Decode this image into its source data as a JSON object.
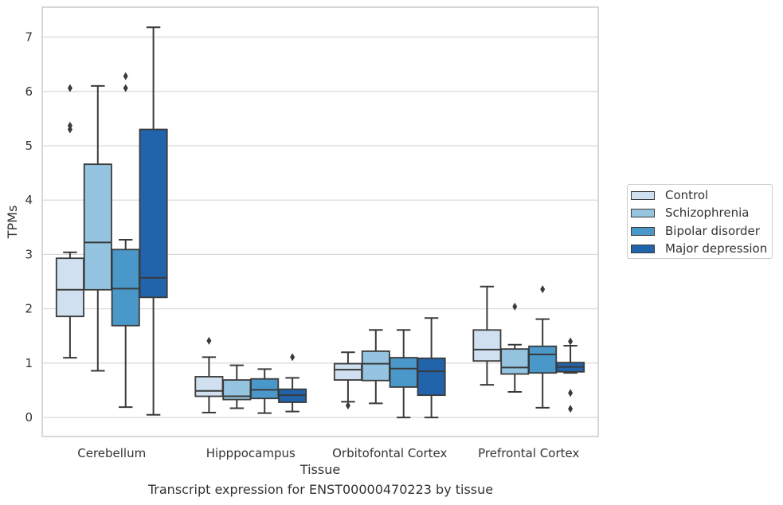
{
  "chart_data": {
    "type": "boxplot",
    "xlabel": "Tissue",
    "ylabel": "TPMs",
    "caption": "Transcript expression for ENST00000470223 by tissue",
    "ylim": [
      -0.35,
      7.55
    ],
    "yticks": [
      0,
      1,
      2,
      3,
      4,
      5,
      6,
      7
    ],
    "grid": "horizontal",
    "legend_position": "right",
    "categories": [
      "Cerebellum",
      "Hipppocampus",
      "Orbitofontal Cortex",
      "Prefrontal Cortex"
    ],
    "series": [
      {
        "name": "Control",
        "color": "#d0e0f0",
        "boxes": [
          {
            "whislo": 1.1,
            "q1": 1.86,
            "med": 2.35,
            "q3": 2.93,
            "whishi": 3.04,
            "fliers": [
              5.3,
              5.37,
              6.06
            ]
          },
          {
            "whislo": 0.09,
            "q1": 0.39,
            "med": 0.49,
            "q3": 0.75,
            "whishi": 1.11,
            "fliers": [
              1.41
            ]
          },
          {
            "whislo": 0.29,
            "q1": 0.69,
            "med": 0.88,
            "q3": 0.99,
            "whishi": 1.2,
            "fliers": [
              0.22
            ]
          },
          {
            "whislo": 0.6,
            "q1": 1.04,
            "med": 1.25,
            "q3": 1.61,
            "whishi": 2.41,
            "fliers": []
          }
        ]
      },
      {
        "name": "Schizophrenia",
        "color": "#94c4df",
        "boxes": [
          {
            "whislo": 0.86,
            "q1": 2.35,
            "med": 3.22,
            "q3": 4.66,
            "whishi": 6.1,
            "fliers": []
          },
          {
            "whislo": 0.17,
            "q1": 0.33,
            "med": 0.39,
            "q3": 0.69,
            "whishi": 0.96,
            "fliers": []
          },
          {
            "whislo": 0.26,
            "q1": 0.68,
            "med": 0.99,
            "q3": 1.22,
            "whishi": 1.61,
            "fliers": []
          },
          {
            "whislo": 0.47,
            "q1": 0.8,
            "med": 0.92,
            "q3": 1.26,
            "whishi": 1.34,
            "fliers": [
              2.04
            ]
          }
        ]
      },
      {
        "name": "Bipolar disorder",
        "color": "#4a98c9",
        "boxes": [
          {
            "whislo": 0.19,
            "q1": 1.69,
            "med": 2.37,
            "q3": 3.09,
            "whishi": 3.27,
            "fliers": [
              6.06,
              6.28
            ]
          },
          {
            "whislo": 0.08,
            "q1": 0.35,
            "med": 0.51,
            "q3": 0.71,
            "whishi": 0.89,
            "fliers": []
          },
          {
            "whislo": 0.0,
            "q1": 0.56,
            "med": 0.9,
            "q3": 1.1,
            "whishi": 1.61,
            "fliers": []
          },
          {
            "whislo": 0.18,
            "q1": 0.82,
            "med": 1.16,
            "q3": 1.31,
            "whishi": 1.81,
            "fliers": [
              2.36
            ]
          }
        ]
      },
      {
        "name": "Major depression",
        "color": "#2164ab",
        "boxes": [
          {
            "whislo": 0.05,
            "q1": 2.21,
            "med": 2.57,
            "q3": 5.3,
            "whishi": 7.18,
            "fliers": []
          },
          {
            "whislo": 0.11,
            "q1": 0.28,
            "med": 0.41,
            "q3": 0.52,
            "whishi": 0.73,
            "fliers": [
              1.11
            ]
          },
          {
            "whislo": 0.0,
            "q1": 0.41,
            "med": 0.85,
            "q3": 1.09,
            "whishi": 1.83,
            "fliers": []
          },
          {
            "whislo": 0.82,
            "q1": 0.84,
            "med": 0.93,
            "q3": 1.01,
            "whishi": 1.32,
            "fliers": [
              0.16,
              0.45,
              1.4
            ]
          }
        ]
      }
    ]
  }
}
